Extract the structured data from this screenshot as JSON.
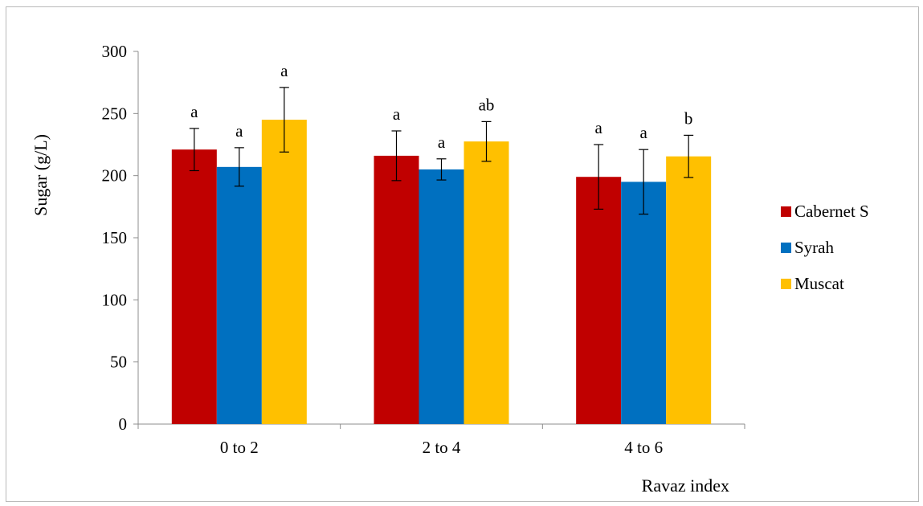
{
  "chart_data": {
    "type": "bar",
    "title": "",
    "xlabel": "Ravaz index",
    "ylabel": "Sugar (g/L)",
    "ylim": [
      0,
      300
    ],
    "yticks": [
      "0",
      "50",
      "100",
      "150",
      "200",
      "250",
      "300"
    ],
    "categories": [
      "0 to 2",
      "2 to 4",
      "4 to 6"
    ],
    "grid": false,
    "legend_position": "right",
    "series": [
      {
        "name": "Cabernet S",
        "color": "#c00000",
        "values": [
          221,
          216,
          199
        ],
        "errors": [
          17,
          20,
          26
        ],
        "labels": [
          "a",
          "a",
          "a"
        ]
      },
      {
        "name": "Syrah",
        "color": "#0070c0",
        "values": [
          207,
          205,
          195
        ],
        "errors": [
          15.5,
          8.5,
          26
        ],
        "labels": [
          "a",
          "a",
          "a"
        ]
      },
      {
        "name": "Muscat",
        "color": "#ffc000",
        "values": [
          245,
          227.5,
          215.5
        ],
        "errors": [
          26,
          16,
          17
        ],
        "labels": [
          "a",
          "ab",
          "b"
        ]
      }
    ]
  }
}
